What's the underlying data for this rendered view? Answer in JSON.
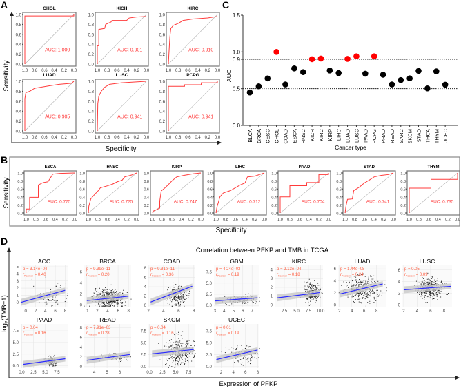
{
  "panel_labels": {
    "a": "A",
    "b": "B",
    "c": "C",
    "d": "D"
  },
  "colors": {
    "roc": "#ff3b3b",
    "auc_text": "#ff3b3b",
    "diag": "#b0b0b0",
    "highlight": "#ff0000",
    "normal": "#000000",
    "fit": "#2b2bff",
    "ci": "#c8c8c8",
    "stats": "#ff5a3c"
  },
  "chart_data": [
    {
      "id": "A",
      "type": "line",
      "xlabel": "Specificity",
      "ylabel": "Sensitivity",
      "x_ticks": [
        "1.0",
        "0.8",
        "0.6",
        "0.4",
        "0.2",
        "0.0"
      ],
      "y_ticks": [
        "0.0",
        "0.2",
        "0.4",
        "0.6",
        "0.8",
        "1.0"
      ],
      "xlim": [
        1,
        0
      ],
      "ylim": [
        0,
        1
      ],
      "panels": [
        {
          "title": "CHOL",
          "auc": "AUC: 1.000",
          "roc": [
            [
              1,
              0
            ],
            [
              1,
              0.97
            ],
            [
              0,
              0.97
            ],
            [
              0,
              1
            ]
          ]
        },
        {
          "title": "KICH",
          "auc": "AUC: 0.901",
          "roc": [
            [
              1,
              0
            ],
            [
              1,
              0.37
            ],
            [
              0.97,
              0.37
            ],
            [
              0.97,
              0.7
            ],
            [
              0.85,
              0.72
            ],
            [
              0.83,
              0.8
            ],
            [
              0.72,
              0.85
            ],
            [
              0.7,
              0.88
            ],
            [
              0.4,
              0.88
            ],
            [
              0.35,
              0.93
            ],
            [
              0.2,
              0.95
            ],
            [
              0,
              0.96
            ]
          ]
        },
        {
          "title": "KIRC",
          "auc": "AUC: 0.910",
          "roc": [
            [
              1,
              0
            ],
            [
              0.99,
              0.2
            ],
            [
              0.97,
              0.55
            ],
            [
              0.95,
              0.72
            ],
            [
              0.9,
              0.78
            ],
            [
              0.8,
              0.82
            ],
            [
              0.7,
              0.88
            ],
            [
              0.5,
              0.91
            ],
            [
              0.2,
              0.93
            ],
            [
              0,
              0.96
            ]
          ]
        },
        {
          "title": "LUAD",
          "auc": "AUC: 0.905",
          "roc": [
            [
              1,
              0
            ],
            [
              1,
              0.65
            ],
            [
              0.98,
              0.77
            ],
            [
              0.9,
              0.8
            ],
            [
              0.8,
              0.86
            ],
            [
              0.5,
              0.91
            ],
            [
              0.3,
              0.94
            ],
            [
              0.05,
              0.96
            ],
            [
              0,
              1
            ]
          ]
        },
        {
          "title": "LUSC",
          "auc": "AUC: 0.941",
          "roc": [
            [
              1,
              0
            ],
            [
              0.99,
              0.55
            ],
            [
              0.97,
              0.7
            ],
            [
              0.92,
              0.8
            ],
            [
              0.85,
              0.88
            ],
            [
              0.75,
              0.94
            ],
            [
              0.5,
              0.97
            ],
            [
              0,
              1
            ]
          ]
        },
        {
          "title": "PCPG",
          "auc": "AUC: 0.941",
          "roc": [
            [
              1,
              0
            ],
            [
              1,
              0.9
            ],
            [
              0.67,
              0.9
            ],
            [
              0.67,
              0.93
            ],
            [
              0.33,
              0.93
            ],
            [
              0.33,
              0.97
            ],
            [
              0,
              0.97
            ],
            [
              0,
              1
            ]
          ]
        }
      ]
    },
    {
      "id": "B",
      "type": "line",
      "xlabel": "Specificity",
      "ylabel": "Sensitivity",
      "x_ticks": [
        "1.0",
        "0.8",
        "0.6",
        "0.4",
        "0.2",
        "0.0"
      ],
      "y_ticks": [
        "0.0",
        "0.2",
        "0.4",
        "0.6",
        "0.8",
        "1.0"
      ],
      "xlim": [
        1,
        0
      ],
      "ylim": [
        0,
        1
      ],
      "panels": [
        {
          "title": "ESCA",
          "auc": "AUC: 0.775",
          "roc": [
            [
              1,
              0
            ],
            [
              1,
              0.1
            ],
            [
              0.93,
              0.1
            ],
            [
              0.93,
              0.39
            ],
            [
              0.75,
              0.39
            ],
            [
              0.75,
              0.7
            ],
            [
              0.65,
              0.76
            ],
            [
              0.55,
              0.78
            ],
            [
              0.45,
              0.97
            ],
            [
              0.3,
              0.99
            ],
            [
              0,
              1
            ]
          ]
        },
        {
          "title": "HNSC",
          "auc": "AUC: 0.725",
          "roc": [
            [
              1,
              0
            ],
            [
              0.99,
              0.17
            ],
            [
              0.95,
              0.35
            ],
            [
              0.88,
              0.45
            ],
            [
              0.8,
              0.55
            ],
            [
              0.75,
              0.63
            ],
            [
              0.6,
              0.68
            ],
            [
              0.5,
              0.72
            ],
            [
              0.4,
              0.78
            ],
            [
              0.3,
              0.82
            ],
            [
              0.25,
              0.9
            ],
            [
              0.1,
              0.95
            ],
            [
              0,
              1
            ]
          ]
        },
        {
          "title": "KIRP",
          "auc": "AUC: 0.747",
          "roc": [
            [
              1,
              0
            ],
            [
              0.98,
              0.05
            ],
            [
              0.85,
              0.12
            ],
            [
              0.85,
              0.3
            ],
            [
              0.82,
              0.55
            ],
            [
              0.75,
              0.62
            ],
            [
              0.68,
              0.7
            ],
            [
              0.6,
              0.8
            ],
            [
              0.5,
              0.9
            ],
            [
              0.35,
              0.94
            ],
            [
              0.15,
              0.98
            ],
            [
              0,
              1
            ]
          ]
        },
        {
          "title": "LIHC",
          "auc": "AUC: 0.712",
          "roc": [
            [
              1,
              0
            ],
            [
              0.98,
              0.15
            ],
            [
              0.95,
              0.27
            ],
            [
              0.92,
              0.4
            ],
            [
              0.85,
              0.5
            ],
            [
              0.7,
              0.56
            ],
            [
              0.6,
              0.63
            ],
            [
              0.5,
              0.7
            ],
            [
              0.4,
              0.75
            ],
            [
              0.35,
              0.9
            ],
            [
              0.2,
              0.92
            ],
            [
              0,
              1
            ]
          ]
        },
        {
          "title": "PAAD",
          "auc": "AUC: 0.704",
          "roc": [
            [
              1,
              0
            ],
            [
              1,
              0.4
            ],
            [
              0.8,
              0.4
            ],
            [
              0.8,
              0.68
            ],
            [
              0.45,
              0.68
            ],
            [
              0.45,
              0.76
            ],
            [
              0.2,
              0.76
            ],
            [
              0.2,
              0.96
            ],
            [
              0,
              0.96
            ],
            [
              0,
              1
            ]
          ]
        },
        {
          "title": "STAD",
          "auc": "AUC: 0.741",
          "roc": [
            [
              1,
              0
            ],
            [
              0.98,
              0.18
            ],
            [
              0.95,
              0.34
            ],
            [
              0.85,
              0.35
            ],
            [
              0.82,
              0.56
            ],
            [
              0.7,
              0.65
            ],
            [
              0.6,
              0.75
            ],
            [
              0.5,
              0.82
            ],
            [
              0.4,
              0.9
            ],
            [
              0.25,
              0.94
            ],
            [
              0.1,
              0.96
            ],
            [
              0,
              1
            ]
          ]
        },
        {
          "title": "THYM",
          "auc": "AUC: 0.735",
          "roc": [
            [
              1,
              0
            ],
            [
              1,
              0.62
            ],
            [
              0.55,
              0.62
            ],
            [
              0.55,
              0.84
            ],
            [
              0,
              0.84
            ],
            [
              0,
              1
            ]
          ]
        }
      ]
    },
    {
      "id": "C",
      "type": "scatter",
      "xlabel": "Cancer type",
      "ylabel": "AUC",
      "ylim": [
        0,
        1.5
      ],
      "y_ticks": [
        "0.0",
        "0.5",
        "0.9",
        "1.0",
        "1.5"
      ],
      "reference_lines": [
        0.9,
        0.5
      ],
      "categories": [
        "BLCA",
        "BRCA",
        "CESC",
        "CHOL",
        "COAD",
        "ESCA",
        "HNSC",
        "KICH",
        "KIRC",
        "KIRP",
        "LIHC",
        "LUAD",
        "LUSC",
        "PAAD",
        "PCPG",
        "PRAD",
        "READ",
        "SARC",
        "SKCM",
        "STAD",
        "THCA",
        "THYM",
        "UCEC"
      ],
      "values": [
        0.448,
        0.532,
        0.639,
        1.0,
        0.557,
        0.775,
        0.725,
        0.901,
        0.91,
        0.747,
        0.712,
        0.905,
        0.941,
        0.704,
        0.941,
        0.69,
        0.557,
        0.617,
        0.64,
        0.741,
        0.504,
        0.735,
        0.554
      ],
      "highlighted": [
        "CHOL",
        "KICH",
        "KIRC",
        "LUAD",
        "LUSC",
        "PCPG"
      ]
    },
    {
      "id": "D",
      "type": "scatter",
      "title": "Correlation between PFKP and TMB in TCGA",
      "xlabel": "Expression of PFKP",
      "ylabel": "log2(TMB+1)",
      "ylabel_main": "log",
      "ylabel_sub": "2",
      "ylabel_rest": "(TMB+1)",
      "r_prefix": "r",
      "r_sub": "Pearson",
      "panels": [
        {
          "title": "ACC",
          "p": "p = 3.14e−04",
          "r": "= 0.40",
          "xlim": [
            -1,
            8.5
          ],
          "ylim": [
            -0.6,
            5.2
          ],
          "x_ticks": [
            0,
            2,
            4,
            6,
            8
          ],
          "y_ticks": [
            0,
            1,
            2,
            3,
            4,
            5
          ],
          "fit": [
            [
              -1,
              0
            ],
            [
              8,
              1.7
            ]
          ]
        },
        {
          "title": "BRCA",
          "p": "p = 9.39e−11",
          "r": "= 0.20",
          "xlim": [
            -0.5,
            8.5
          ],
          "ylim": [
            -0.3,
            7.2
          ],
          "x_ticks": [
            0,
            2,
            4,
            6,
            8
          ],
          "y_ticks": [
            0,
            2,
            4,
            6
          ],
          "fit": [
            [
              0,
              0.8
            ],
            [
              8,
              1.6
            ]
          ]
        },
        {
          "title": "COAD",
          "p": "p = 9.31e−11",
          "r": "= 0.36",
          "xlim": [
            2,
            8.2
          ],
          "ylim": [
            -0.3,
            8.6
          ],
          "x_ticks": [
            2,
            4,
            6,
            8
          ],
          "y_ticks": [
            0,
            2,
            4,
            6,
            8
          ],
          "fit": [
            [
              2.3,
              0.7
            ],
            [
              7.8,
              4.1
            ]
          ]
        },
        {
          "title": "GBM",
          "p": "p = 4.24e−03",
          "r": "= 0.19",
          "xlim": [
            2.9,
            7.8
          ],
          "ylim": [
            -0.3,
            9
          ],
          "x_ticks": [
            3,
            4,
            5,
            6,
            7
          ],
          "y_ticks": [
            "0.0",
            "2.5",
            "5.0",
            "7.5"
          ],
          "fit": [
            [
              3,
              1.0
            ],
            [
              7.6,
              1.7
            ]
          ]
        },
        {
          "title": "KIRC",
          "p": "p = 2.13e−04",
          "r": "= 0.18",
          "xlim": [
            0.5,
            10.5
          ],
          "ylim": [
            -0.2,
            4.5
          ],
          "x_ticks": [
            "2.5",
            "5.0",
            "7.5",
            "10.0"
          ],
          "y_ticks": [
            0,
            1,
            2,
            3,
            4
          ],
          "fit": [
            [
              1,
              0.8
            ],
            [
              9.8,
              1.4
            ]
          ]
        },
        {
          "title": "LUAD",
          "p": "p = 1.44e−08",
          "r": "= 0.24",
          "xlim": [
            1.8,
            9.6
          ],
          "ylim": [
            -0.3,
            6.6
          ],
          "x_ticks": [
            2,
            4,
            6,
            8
          ],
          "y_ticks": [
            0,
            2,
            4,
            6
          ],
          "fit": [
            [
              2,
              1.8
            ],
            [
              9,
              3.5
            ]
          ]
        },
        {
          "title": "LUSC",
          "p": "p = 0.05",
          "r": "= 0.09",
          "xlim": [
            1.8,
            9.2
          ],
          "ylim": [
            -0.3,
            6.8
          ],
          "x_ticks": [
            2,
            4,
            6,
            8
          ],
          "y_ticks": [
            0,
            2,
            4,
            6
          ],
          "fit": [
            [
              2,
              2.6
            ],
            [
              9,
              3.2
            ]
          ]
        },
        {
          "title": "PAAD",
          "p": "p = 0.04",
          "r": "= 0.16",
          "xlim": [
            -0.2,
            9.8
          ],
          "ylim": [
            -0.5,
            9
          ],
          "x_ticks": [
            "0.0",
            "2.5",
            "5.0",
            "7.5"
          ],
          "y_ticks": [
            "0.0",
            "2.5",
            "5.0",
            "7.5"
          ],
          "fit": [
            [
              0.3,
              0.3
            ],
            [
              9.3,
              1.5
            ]
          ]
        },
        {
          "title": "READ",
          "p": "p = 7.91e−03",
          "r": "= 0.28",
          "xlim": [
            3.2,
            6.9
          ],
          "ylim": [
            -0.3,
            8.8
          ],
          "x_ticks": [
            4,
            5,
            6
          ],
          "y_ticks": [
            0,
            2,
            4,
            6,
            8
          ],
          "fit": [
            [
              3.4,
              1.3
            ],
            [
              6.8,
              2.5
            ]
          ]
        },
        {
          "title": "SKCM",
          "p": "p = 0.04",
          "r": "= 0.16",
          "xlim": [
            -0.2,
            8.8
          ],
          "ylim": [
            -0.3,
            9
          ],
          "x_ticks": [
            "0.0",
            "2.5",
            "5.0",
            "7.5"
          ],
          "y_ticks": [
            "0.0",
            "2.5",
            "5.0",
            "7.5"
          ],
          "fit": [
            [
              0.5,
              2.7
            ],
            [
              8.5,
              3.6
            ]
          ]
        },
        {
          "title": "UCEC",
          "p": "p = 0.01",
          "r": "= 0.19",
          "xlim": [
            0.8,
            8.3
          ],
          "ylim": [
            -0.3,
            9
          ],
          "x_ticks": [
            2,
            4,
            6,
            8
          ],
          "y_ticks": [
            "0.0",
            "2.5",
            "5.0",
            "7.5"
          ],
          "fit": [
            [
              1.2,
              1.5
            ],
            [
              8,
              3.5
            ]
          ]
        }
      ]
    }
  ]
}
